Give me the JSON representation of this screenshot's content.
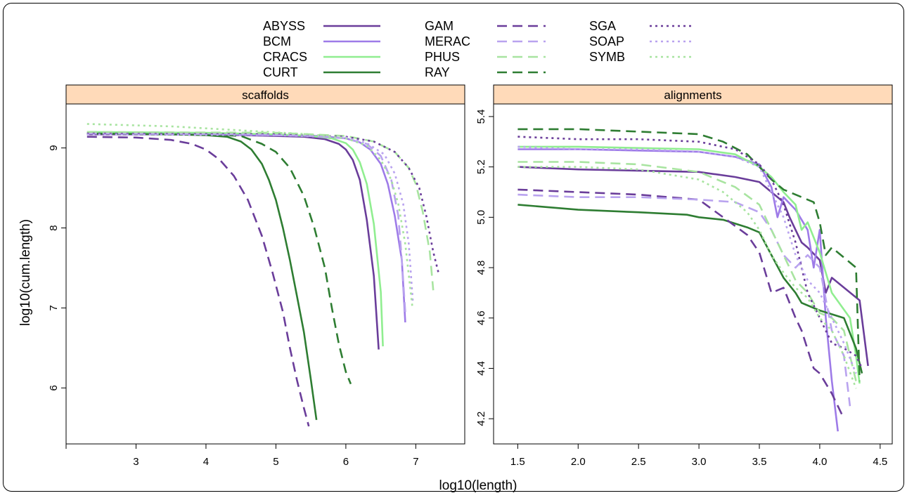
{
  "figure": {
    "xlabel": "log10(length)",
    "ylabel": "log10(cum.length)"
  },
  "chart_data": [
    {
      "type": "line",
      "panel": "scaffolds",
      "title": "scaffolds",
      "xlabel": "log10(length)",
      "ylabel": "log10(cum.length)",
      "xlim": [
        2.0,
        7.7
      ],
      "ylim": [
        5.3,
        9.55
      ],
      "xticks": [
        3,
        4,
        5,
        6,
        7
      ],
      "yticks": [
        6,
        7,
        8,
        9
      ],
      "series": [
        {
          "name": "ABYSS",
          "color": "#6a3d9a",
          "dash": "solid",
          "x": [
            2.3,
            3.5,
            4.5,
            5.0,
            5.4,
            5.7,
            5.9,
            6.0,
            6.1,
            6.2,
            6.3,
            6.4,
            6.47
          ],
          "y": [
            9.17,
            9.17,
            9.16,
            9.15,
            9.14,
            9.11,
            9.05,
            8.98,
            8.85,
            8.6,
            8.1,
            7.4,
            6.48
          ]
        },
        {
          "name": "BCM",
          "color": "#9e7be8",
          "dash": "solid",
          "x": [
            2.3,
            4.0,
            5.0,
            5.6,
            6.0,
            6.2,
            6.35,
            6.5,
            6.6,
            6.7,
            6.8,
            6.85
          ],
          "y": [
            9.18,
            9.17,
            9.16,
            9.15,
            9.12,
            9.07,
            8.98,
            8.8,
            8.55,
            8.15,
            7.6,
            6.82
          ]
        },
        {
          "name": "CRACS",
          "color": "#90ee90",
          "dash": "solid",
          "x": [
            2.3,
            4.0,
            5.0,
            5.5,
            5.8,
            6.0,
            6.1,
            6.2,
            6.3,
            6.4,
            6.5,
            6.53
          ],
          "y": [
            9.2,
            9.19,
            9.17,
            9.15,
            9.12,
            9.06,
            8.98,
            8.82,
            8.55,
            8.05,
            7.2,
            6.52
          ]
        },
        {
          "name": "CURT",
          "color": "#2e7d32",
          "dash": "solid",
          "x": [
            2.3,
            3.5,
            4.0,
            4.3,
            4.5,
            4.65,
            4.8,
            4.9,
            5.0,
            5.1,
            5.2,
            5.3,
            5.4,
            5.5,
            5.58
          ],
          "y": [
            9.18,
            9.17,
            9.16,
            9.14,
            9.08,
            8.98,
            8.8,
            8.6,
            8.35,
            8.0,
            7.6,
            7.15,
            6.7,
            6.1,
            5.6
          ]
        },
        {
          "name": "GAM",
          "color": "#6a3d9a",
          "dash": "dashed",
          "x": [
            2.3,
            3.0,
            3.5,
            3.8,
            4.0,
            4.2,
            4.4,
            4.6,
            4.8,
            4.95,
            5.1,
            5.2,
            5.3,
            5.4,
            5.47
          ],
          "y": [
            9.14,
            9.13,
            9.1,
            9.05,
            8.98,
            8.85,
            8.65,
            8.35,
            7.9,
            7.45,
            6.95,
            6.5,
            6.1,
            5.75,
            5.52
          ]
        },
        {
          "name": "RAY",
          "color": "#2e7d32",
          "dash": "dashed",
          "x": [
            2.3,
            4.0,
            4.5,
            4.8,
            5.0,
            5.2,
            5.4,
            5.55,
            5.7,
            5.8,
            5.9,
            6.0,
            6.07
          ],
          "y": [
            9.18,
            9.17,
            9.15,
            9.05,
            8.95,
            8.75,
            8.4,
            8.0,
            7.5,
            7.0,
            6.55,
            6.2,
            6.05
          ]
        },
        {
          "name": "MERAC",
          "color": "#b9a3ef",
          "dash": "dashed",
          "x": [
            2.3,
            4.5,
            5.5,
            6.0,
            6.3,
            6.5,
            6.65,
            6.75,
            6.8,
            6.85
          ],
          "y": [
            9.18,
            9.17,
            9.15,
            9.12,
            9.05,
            8.9,
            8.6,
            8.15,
            7.6,
            6.95
          ]
        },
        {
          "name": "PHUS",
          "color": "#a8e4a0",
          "dash": "dashed",
          "x": [
            2.3,
            5.0,
            6.0,
            6.4,
            6.7,
            6.9,
            7.0,
            7.1,
            7.2,
            7.25
          ],
          "y": [
            9.2,
            9.19,
            9.15,
            9.08,
            8.95,
            8.75,
            8.55,
            8.2,
            7.7,
            7.22
          ]
        },
        {
          "name": "SGA",
          "color": "#6a3d9a",
          "dash": "dotted",
          "x": [
            2.3,
            5.0,
            6.0,
            6.4,
            6.7,
            6.9,
            7.05,
            7.15,
            7.25,
            7.33
          ],
          "y": [
            9.18,
            9.17,
            9.14,
            9.08,
            8.95,
            8.75,
            8.5,
            8.15,
            7.7,
            7.42
          ]
        },
        {
          "name": "SOAP",
          "color": "#b9a3ef",
          "dash": "dotted",
          "x": [
            2.3,
            5.0,
            6.0,
            6.3,
            6.55,
            6.7,
            6.82,
            6.9,
            6.96
          ],
          "y": [
            9.17,
            9.16,
            9.13,
            9.06,
            8.92,
            8.68,
            8.3,
            7.8,
            7.05
          ]
        },
        {
          "name": "SYMB",
          "color": "#a8e4a0",
          "dash": "dotted",
          "x": [
            2.3,
            3.5,
            4.5,
            5.5,
            6.0,
            6.3,
            6.5,
            6.65,
            6.75,
            6.85,
            6.95
          ],
          "y": [
            9.3,
            9.27,
            9.22,
            9.17,
            9.12,
            9.03,
            8.85,
            8.6,
            8.3,
            7.8,
            7.02
          ]
        }
      ]
    },
    {
      "type": "line",
      "panel": "alignments",
      "title": "alignments",
      "xlabel": "log10(length)",
      "ylabel": "log10(cum.length)",
      "xlim": [
        1.3,
        4.6
      ],
      "ylim": [
        4.1,
        5.45
      ],
      "xticks": [
        1.5,
        2.0,
        2.5,
        3.0,
        3.5,
        4.0,
        4.5
      ],
      "yticks": [
        4.2,
        4.4,
        4.6,
        4.8,
        5.0,
        5.2,
        5.4
      ],
      "series": [
        {
          "name": "ABYSS",
          "color": "#6a3d9a",
          "dash": "solid",
          "x": [
            1.5,
            2.0,
            3.0,
            3.3,
            3.5,
            3.6,
            3.7,
            3.75,
            3.8,
            3.85,
            3.9,
            4.0,
            4.05,
            4.1,
            4.33,
            4.4
          ],
          "y": [
            5.2,
            5.19,
            5.18,
            5.16,
            5.14,
            5.1,
            5.06,
            5.0,
            4.95,
            4.9,
            4.88,
            4.83,
            4.7,
            4.76,
            4.67,
            4.41
          ]
        },
        {
          "name": "BCM",
          "color": "#9e7be8",
          "dash": "solid",
          "x": [
            1.5,
            2.0,
            3.0,
            3.3,
            3.5,
            3.6,
            3.65,
            3.7,
            3.8,
            3.9,
            3.95,
            4.0,
            4.05,
            4.1,
            4.15
          ],
          "y": [
            5.27,
            5.27,
            5.26,
            5.24,
            5.21,
            5.12,
            5.0,
            5.08,
            5.03,
            4.95,
            4.8,
            4.95,
            4.6,
            4.35,
            4.15
          ]
        },
        {
          "name": "CRACS",
          "color": "#90ee90",
          "dash": "solid",
          "x": [
            1.5,
            2.0,
            3.0,
            3.3,
            3.5,
            3.6,
            3.7,
            3.8,
            3.85,
            3.9,
            4.0,
            4.1,
            4.25,
            4.3,
            4.33
          ],
          "y": [
            5.28,
            5.28,
            5.27,
            5.25,
            5.2,
            5.16,
            5.1,
            5.05,
            4.95,
            4.98,
            4.86,
            4.7,
            4.6,
            4.45,
            4.34
          ]
        },
        {
          "name": "CURT",
          "color": "#2e7d32",
          "dash": "solid",
          "x": [
            1.5,
            2.0,
            2.5,
            2.9,
            3.0,
            3.2,
            3.4,
            3.5,
            3.6,
            3.7,
            3.8,
            3.85,
            4.0,
            4.2,
            4.3,
            4.35
          ],
          "y": [
            5.05,
            5.03,
            5.02,
            5.01,
            5.0,
            4.99,
            4.96,
            4.94,
            4.85,
            4.76,
            4.7,
            4.66,
            4.63,
            4.6,
            4.48,
            4.38
          ]
        },
        {
          "name": "GAM",
          "color": "#6a3d9a",
          "dash": "dashed",
          "x": [
            1.5,
            2.0,
            2.5,
            3.0,
            3.2,
            3.4,
            3.5,
            3.6,
            3.7,
            3.8,
            3.85,
            3.95,
            4.0,
            4.1,
            4.2
          ],
          "y": [
            5.11,
            5.1,
            5.09,
            5.07,
            5.0,
            4.93,
            4.86,
            4.7,
            4.72,
            4.6,
            4.55,
            4.4,
            4.38,
            4.3,
            4.2
          ]
        },
        {
          "name": "RAY",
          "color": "#2e7d32",
          "dash": "dashed",
          "x": [
            1.5,
            2.0,
            2.5,
            3.0,
            3.2,
            3.4,
            3.5,
            3.6,
            3.7,
            3.85,
            3.95,
            4.0,
            4.05,
            4.1,
            4.2,
            4.3,
            4.33
          ],
          "y": [
            5.35,
            5.35,
            5.34,
            5.33,
            5.3,
            5.25,
            5.2,
            5.15,
            5.11,
            5.08,
            5.06,
            4.98,
            4.85,
            4.88,
            4.84,
            4.8,
            4.35
          ]
        },
        {
          "name": "MERAC",
          "color": "#b9a3ef",
          "dash": "dashed",
          "x": [
            1.5,
            2.0,
            2.5,
            3.0,
            3.3,
            3.5,
            3.6,
            3.7,
            3.8,
            3.9,
            4.0,
            4.1,
            4.2,
            4.25
          ],
          "y": [
            5.09,
            5.08,
            5.08,
            5.07,
            5.06,
            5.02,
            4.95,
            4.85,
            4.8,
            4.85,
            4.8,
            4.55,
            4.45,
            4.25
          ]
        },
        {
          "name": "PHUS",
          "color": "#a8e4a0",
          "dash": "dashed",
          "x": [
            1.5,
            2.0,
            2.5,
            3.0,
            3.3,
            3.5,
            3.6,
            3.7,
            3.8,
            3.9,
            4.0,
            4.1,
            4.2,
            4.3
          ],
          "y": [
            5.22,
            5.22,
            5.21,
            5.18,
            5.12,
            5.05,
            4.95,
            4.85,
            4.75,
            4.7,
            4.62,
            4.6,
            4.55,
            4.35
          ]
        },
        {
          "name": "SGA",
          "color": "#6a3d9a",
          "dash": "dotted",
          "x": [
            1.5,
            2.0,
            2.5,
            3.0,
            3.3,
            3.5,
            3.6,
            3.7,
            3.8,
            3.9,
            4.0,
            4.05,
            4.1,
            4.2,
            4.3,
            4.35
          ],
          "y": [
            5.32,
            5.31,
            5.31,
            5.3,
            5.27,
            5.21,
            5.15,
            5.05,
            4.9,
            4.7,
            4.6,
            4.55,
            4.5,
            4.48,
            4.45,
            4.4
          ]
        },
        {
          "name": "SOAP",
          "color": "#b9a3ef",
          "dash": "dotted",
          "x": [
            1.5,
            2.0,
            2.5,
            3.0,
            3.3,
            3.5,
            3.6,
            3.7,
            3.8,
            3.9,
            4.0,
            4.1,
            4.2,
            4.3
          ],
          "y": [
            5.28,
            5.27,
            5.27,
            5.26,
            5.24,
            5.2,
            5.1,
            5.0,
            4.85,
            4.75,
            4.7,
            4.6,
            4.5,
            4.38
          ]
        },
        {
          "name": "SYMB",
          "color": "#a8e4a0",
          "dash": "dotted",
          "x": [
            1.5,
            2.0,
            2.5,
            3.0,
            3.2,
            3.4,
            3.5,
            3.6,
            3.7,
            3.8,
            3.9,
            4.0,
            4.1,
            4.2,
            4.3
          ],
          "y": [
            5.2,
            5.2,
            5.19,
            5.15,
            5.1,
            5.02,
            4.95,
            4.85,
            4.78,
            4.72,
            4.68,
            4.6,
            4.55,
            4.45,
            4.32
          ]
        }
      ]
    }
  ],
  "legend": {
    "position": "top",
    "columns": [
      [
        {
          "name": "ABYSS",
          "color": "#6a3d9a",
          "dash": "solid"
        },
        {
          "name": "BCM",
          "color": "#9e7be8",
          "dash": "solid"
        },
        {
          "name": "CRACS",
          "color": "#90ee90",
          "dash": "solid"
        },
        {
          "name": "CURT",
          "color": "#2e7d32",
          "dash": "solid"
        }
      ],
      [
        {
          "name": "GAM",
          "color": "#6a3d9a",
          "dash": "dashed"
        },
        {
          "name": "MERAC",
          "color": "#b9a3ef",
          "dash": "dashed"
        },
        {
          "name": "PHUS",
          "color": "#a8e4a0",
          "dash": "dashed"
        },
        {
          "name": "RAY",
          "color": "#2e7d32",
          "dash": "dashed"
        }
      ],
      [
        {
          "name": "SGA",
          "color": "#6a3d9a",
          "dash": "dotted"
        },
        {
          "name": "SOAP",
          "color": "#b9a3ef",
          "dash": "dotted"
        },
        {
          "name": "SYMB",
          "color": "#a8e4a0",
          "dash": "dotted"
        }
      ]
    ]
  }
}
